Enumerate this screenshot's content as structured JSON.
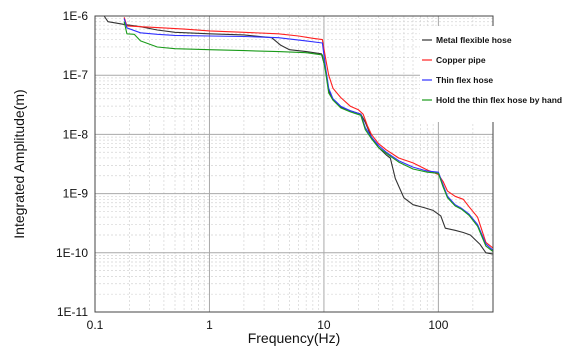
{
  "chart_data": {
    "type": "line",
    "xlabel": "Frequency(Hz)",
    "ylabel": "Integrated Amplitude(m)",
    "x_scale": "log",
    "y_scale": "log",
    "xlim": [
      0.1,
      300
    ],
    "ylim": [
      1e-11,
      1e-06
    ],
    "grid": true,
    "legend_position": "top-right",
    "x_ticks": [
      {
        "value": 0.1,
        "label": "0.1"
      },
      {
        "value": 1,
        "label": "1"
      },
      {
        "value": 10,
        "label": "10"
      },
      {
        "value": 100,
        "label": "100"
      }
    ],
    "y_ticks": [
      {
        "value": 1e-06,
        "label": "1E-6"
      },
      {
        "value": 1e-07,
        "label": "1E-7"
      },
      {
        "value": 1e-08,
        "label": "1E-8"
      },
      {
        "value": 1e-09,
        "label": "1E-9"
      },
      {
        "value": 1e-10,
        "label": "1E-10"
      },
      {
        "value": 1e-11,
        "label": "1E-11"
      }
    ],
    "series": [
      {
        "name": "Metal flexible hose",
        "color": "#333333",
        "points": [
          [
            0.12,
            1e-06
          ],
          [
            0.13,
            8e-07
          ],
          [
            0.18,
            7.2e-07
          ],
          [
            0.25,
            6.6e-07
          ],
          [
            0.35,
            5.8e-07
          ],
          [
            0.5,
            5.3e-07
          ],
          [
            1,
            5e-07
          ],
          [
            2,
            4.8e-07
          ],
          [
            3.5,
            4.3e-07
          ],
          [
            4.2,
            3.2e-07
          ],
          [
            5,
            2.7e-07
          ],
          [
            7,
            2.5e-07
          ],
          [
            9.5,
            2.3e-07
          ],
          [
            10.3,
            1.3e-07
          ],
          [
            11,
            5.5e-08
          ],
          [
            12,
            3.8e-08
          ],
          [
            14,
            2.9e-08
          ],
          [
            17,
            2.5e-08
          ],
          [
            21,
            2.2e-08
          ],
          [
            23,
            1.6e-08
          ],
          [
            26,
            9e-09
          ],
          [
            30,
            6e-09
          ],
          [
            35,
            4.5e-09
          ],
          [
            38,
            4e-09
          ],
          [
            42,
            1.8e-09
          ],
          [
            50,
            8.5e-10
          ],
          [
            60,
            6.5e-10
          ],
          [
            75,
            5.8e-10
          ],
          [
            90,
            5.2e-10
          ],
          [
            105,
            4.2e-10
          ],
          [
            115,
            2.6e-10
          ],
          [
            140,
            2.4e-10
          ],
          [
            165,
            2.2e-10
          ],
          [
            190,
            2e-10
          ],
          [
            230,
            1.4e-10
          ],
          [
            260,
            1e-10
          ],
          [
            300,
            9.5e-11
          ]
        ]
      },
      {
        "name": "Copper pipe",
        "color": "#ff2020",
        "points": [
          [
            0.18,
            9.5e-07
          ],
          [
            0.19,
            6.8e-07
          ],
          [
            0.25,
            6.6e-07
          ],
          [
            0.4,
            6.3e-07
          ],
          [
            0.6,
            6e-07
          ],
          [
            1,
            5.6e-07
          ],
          [
            2,
            5.3e-07
          ],
          [
            4,
            5e-07
          ],
          [
            6,
            4.6e-07
          ],
          [
            8,
            4.2e-07
          ],
          [
            9.7,
            4e-07
          ],
          [
            10.3,
            2e-07
          ],
          [
            11,
            1e-07
          ],
          [
            12,
            6e-08
          ],
          [
            14,
            4.2e-08
          ],
          [
            17,
            3e-08
          ],
          [
            20,
            2.6e-08
          ],
          [
            22,
            2.2e-08
          ],
          [
            24,
            1.4e-08
          ],
          [
            26,
            1e-08
          ],
          [
            30,
            7e-09
          ],
          [
            35,
            5.5e-09
          ],
          [
            45,
            4e-09
          ],
          [
            60,
            3.3e-09
          ],
          [
            80,
            2.5e-09
          ],
          [
            100,
            2.1e-09
          ],
          [
            110,
            1.6e-09
          ],
          [
            120,
            1.1e-09
          ],
          [
            140,
            9e-10
          ],
          [
            165,
            8e-10
          ],
          [
            185,
            6e-10
          ],
          [
            220,
            4e-10
          ],
          [
            260,
            1.5e-10
          ],
          [
            300,
            1.2e-10
          ]
        ]
      },
      {
        "name": "Thin flex hose",
        "color": "#3030ff",
        "points": [
          [
            0.18,
            9e-07
          ],
          [
            0.19,
            6.3e-07
          ],
          [
            0.25,
            5.2e-07
          ],
          [
            0.35,
            4.9e-07
          ],
          [
            0.5,
            4.7e-07
          ],
          [
            1,
            4.6e-07
          ],
          [
            2,
            4.5e-07
          ],
          [
            4,
            4.3e-07
          ],
          [
            7,
            3.8e-07
          ],
          [
            9.7,
            3.5e-07
          ],
          [
            10.3,
            1.4e-07
          ],
          [
            11,
            6e-08
          ],
          [
            12,
            4e-08
          ],
          [
            14,
            3e-08
          ],
          [
            17,
            2.5e-08
          ],
          [
            21,
            2.2e-08
          ],
          [
            23,
            1.3e-08
          ],
          [
            26,
            9e-09
          ],
          [
            30,
            6.5e-09
          ],
          [
            35,
            5e-09
          ],
          [
            45,
            3.6e-09
          ],
          [
            60,
            2.8e-09
          ],
          [
            80,
            2.4e-09
          ],
          [
            100,
            2.3e-09
          ],
          [
            110,
            1.4e-09
          ],
          [
            120,
            9e-10
          ],
          [
            140,
            6.5e-10
          ],
          [
            160,
            5.6e-10
          ],
          [
            185,
            4.5e-10
          ],
          [
            220,
            3e-10
          ],
          [
            260,
            1.4e-10
          ],
          [
            300,
            1.1e-10
          ]
        ]
      },
      {
        "name": "Hold the thin flex hose by hand",
        "color": "#1a9b1a",
        "points": [
          [
            0.18,
            8e-07
          ],
          [
            0.19,
            5e-07
          ],
          [
            0.22,
            4.9e-07
          ],
          [
            0.25,
            3.8e-07
          ],
          [
            0.35,
            3e-07
          ],
          [
            0.5,
            2.8e-07
          ],
          [
            1,
            2.7e-07
          ],
          [
            2,
            2.6e-07
          ],
          [
            4,
            2.5e-07
          ],
          [
            7,
            2.4e-07
          ],
          [
            9.7,
            2.2e-07
          ],
          [
            10.3,
            1.2e-07
          ],
          [
            11,
            5e-08
          ],
          [
            12,
            3.8e-08
          ],
          [
            14,
            2.8e-08
          ],
          [
            17,
            2.4e-08
          ],
          [
            21,
            2.1e-08
          ],
          [
            23,
            1.2e-08
          ],
          [
            26,
            8.5e-09
          ],
          [
            30,
            6e-09
          ],
          [
            35,
            4.8e-09
          ],
          [
            45,
            3.4e-09
          ],
          [
            60,
            2.6e-09
          ],
          [
            80,
            2.3e-09
          ],
          [
            100,
            2.2e-09
          ],
          [
            110,
            1.3e-09
          ],
          [
            120,
            8.5e-10
          ],
          [
            140,
            6.2e-10
          ],
          [
            160,
            5.4e-10
          ],
          [
            185,
            4.3e-10
          ],
          [
            220,
            2.8e-10
          ],
          [
            260,
            1.3e-10
          ],
          [
            300,
            1.05e-10
          ]
        ]
      }
    ]
  }
}
